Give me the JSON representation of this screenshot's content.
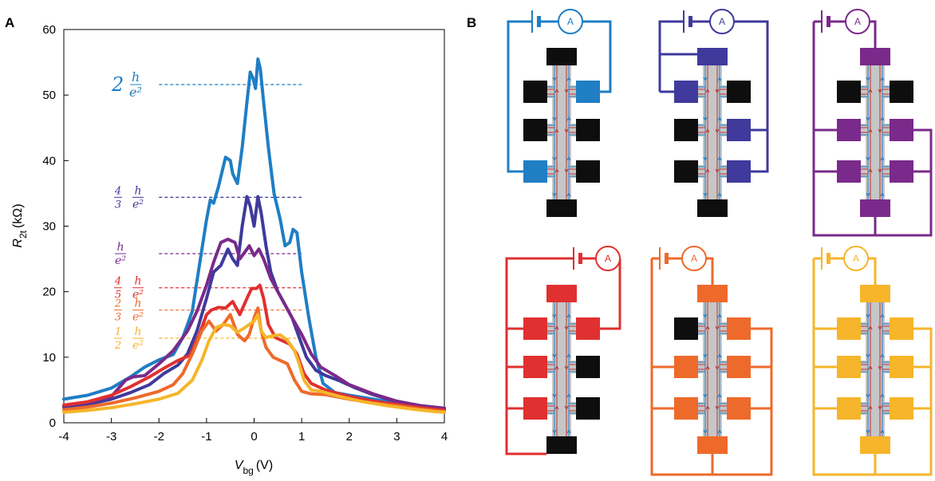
{
  "panel_a": {
    "letter": "A",
    "chart_data": {
      "type": "line",
      "xlabel": "V",
      "xlabel_sub": "bg",
      "xlabel_unit": "(V)",
      "ylabel": "R",
      "ylabel_sub": "2t",
      "ylabel_unit": "(kΩ)",
      "xlim": [
        -4,
        4
      ],
      "ylim": [
        0,
        60
      ],
      "xticks": [
        -4,
        -3,
        -2,
        -1,
        0,
        1,
        2,
        3,
        4
      ],
      "yticks": [
        0,
        10,
        20,
        30,
        40,
        50,
        60
      ],
      "grid": false,
      "reference_lines": [
        {
          "label_coef": "2",
          "label_frac": "h/e²",
          "y": 51.6,
          "color": "#1f7ec4"
        },
        {
          "label_coef": "4/3",
          "label_frac": "h/e²",
          "y": 34.4,
          "color": "#3f3a9c"
        },
        {
          "label_coef": "",
          "label_frac": "h/e²",
          "y": 25.8,
          "color": "#7a2a8a"
        },
        {
          "label_coef": "4/5",
          "label_frac": "h/e²",
          "y": 20.6,
          "color": "#e03030"
        },
        {
          "label_coef": "2/3",
          "label_frac": "h/e²",
          "y": 17.2,
          "color": "#ee6a2a"
        },
        {
          "label_coef": "1/2",
          "label_frac": "h/e²",
          "y": 12.9,
          "color": "#f6b52a"
        }
      ],
      "series": [
        {
          "color": "#1f7ec4",
          "points": [
            [
              -4,
              3.6
            ],
            [
              -3.5,
              4.2
            ],
            [
              -3,
              5.3
            ],
            [
              -2.6,
              7.0
            ],
            [
              -2.3,
              8.5
            ],
            [
              -2.0,
              9.6
            ],
            [
              -1.7,
              10.4
            ],
            [
              -1.5,
              13
            ],
            [
              -1.3,
              17
            ],
            [
              -1.15,
              24
            ],
            [
              -1.0,
              31
            ],
            [
              -0.92,
              34
            ],
            [
              -0.85,
              33.5
            ],
            [
              -0.75,
              36
            ],
            [
              -0.6,
              40.5
            ],
            [
              -0.5,
              40
            ],
            [
              -0.45,
              38
            ],
            [
              -0.35,
              36.5
            ],
            [
              -0.25,
              42
            ],
            [
              -0.15,
              49
            ],
            [
              -0.08,
              53.5
            ],
            [
              -0.02,
              52.5
            ],
            [
              0.03,
              51
            ],
            [
              0.08,
              55.5
            ],
            [
              0.13,
              54
            ],
            [
              0.2,
              49
            ],
            [
              0.3,
              42
            ],
            [
              0.42,
              35
            ],
            [
              0.55,
              31
            ],
            [
              0.65,
              27
            ],
            [
              0.75,
              27.5
            ],
            [
              0.82,
              29.5
            ],
            [
              0.9,
              29
            ],
            [
              1.0,
              23
            ],
            [
              1.15,
              16
            ],
            [
              1.3,
              10
            ],
            [
              1.45,
              6
            ],
            [
              1.7,
              4.6
            ],
            [
              2.0,
              4.2
            ],
            [
              2.5,
              3.6
            ],
            [
              3,
              3.0
            ],
            [
              3.5,
              2.6
            ],
            [
              4,
              2.2
            ]
          ]
        },
        {
          "color": "#3f3a9c",
          "points": [
            [
              -4,
              2.4
            ],
            [
              -3.5,
              2.8
            ],
            [
              -3,
              3.6
            ],
            [
              -2.6,
              4.6
            ],
            [
              -2.2,
              5.8
            ],
            [
              -1.9,
              7.5
            ],
            [
              -1.6,
              8.8
            ],
            [
              -1.4,
              10.5
            ],
            [
              -1.2,
              14
            ],
            [
              -1.0,
              19
            ],
            [
              -0.85,
              23
            ],
            [
              -0.7,
              24
            ],
            [
              -0.55,
              26.5
            ],
            [
              -0.45,
              25
            ],
            [
              -0.35,
              24
            ],
            [
              -0.25,
              30
            ],
            [
              -0.15,
              34.5
            ],
            [
              -0.08,
              33
            ],
            [
              0.0,
              30
            ],
            [
              0.08,
              34.5
            ],
            [
              0.15,
              32
            ],
            [
              0.25,
              27
            ],
            [
              0.35,
              23
            ],
            [
              0.5,
              20
            ],
            [
              0.65,
              18
            ],
            [
              0.8,
              16
            ],
            [
              0.95,
              13
            ],
            [
              1.1,
              10
            ],
            [
              1.3,
              8
            ],
            [
              1.5,
              7.2
            ],
            [
              1.8,
              6.4
            ],
            [
              2.1,
              5.4
            ],
            [
              2.5,
              4.3
            ],
            [
              3,
              3.2
            ],
            [
              3.5,
              2.6
            ],
            [
              4,
              2.2
            ]
          ]
        },
        {
          "color": "#7a2a8a",
          "points": [
            [
              -4,
              2.6
            ],
            [
              -3.5,
              3.1
            ],
            [
              -3,
              4.0
            ],
            [
              -2.7,
              6.5
            ],
            [
              -2.55,
              7.0
            ],
            [
              -2.3,
              7.2
            ],
            [
              -2.0,
              9.0
            ],
            [
              -1.7,
              11.0
            ],
            [
              -1.4,
              14
            ],
            [
              -1.2,
              17
            ],
            [
              -1.0,
              21
            ],
            [
              -0.85,
              24.5
            ],
            [
              -0.7,
              27.5
            ],
            [
              -0.55,
              28
            ],
            [
              -0.4,
              27.5
            ],
            [
              -0.3,
              25
            ],
            [
              -0.2,
              26
            ],
            [
              -0.1,
              27
            ],
            [
              0.0,
              25.5
            ],
            [
              0.1,
              26.5
            ],
            [
              0.2,
              25
            ],
            [
              0.35,
              22
            ],
            [
              0.5,
              20
            ],
            [
              0.65,
              18
            ],
            [
              0.8,
              16
            ],
            [
              1.0,
              13.5
            ],
            [
              1.2,
              10.5
            ],
            [
              1.4,
              8.5
            ],
            [
              1.7,
              7.2
            ],
            [
              2.0,
              5.8
            ],
            [
              2.5,
              4.4
            ],
            [
              3,
              3.3
            ],
            [
              3.5,
              2.6
            ],
            [
              4,
              2.2
            ]
          ]
        },
        {
          "color": "#e03030",
          "points": [
            [
              -4,
              2.7
            ],
            [
              -3.5,
              3.2
            ],
            [
              -3,
              4.2
            ],
            [
              -2.6,
              5.5
            ],
            [
              -2.2,
              7.0
            ],
            [
              -1.9,
              8.3
            ],
            [
              -1.6,
              9.5
            ],
            [
              -1.35,
              10.3
            ],
            [
              -1.15,
              13.5
            ],
            [
              -1.0,
              16.5
            ],
            [
              -0.9,
              17.2
            ],
            [
              -0.75,
              17.6
            ],
            [
              -0.6,
              17.5
            ],
            [
              -0.45,
              18.5
            ],
            [
              -0.3,
              16.5
            ],
            [
              -0.15,
              19
            ],
            [
              -0.05,
              20.5
            ],
            [
              0.05,
              20.5
            ],
            [
              0.12,
              21
            ],
            [
              0.2,
              19
            ],
            [
              0.3,
              15
            ],
            [
              0.45,
              13
            ],
            [
              0.6,
              12.5
            ],
            [
              0.75,
              12
            ],
            [
              0.9,
              10.5
            ],
            [
              1.05,
              7.5
            ],
            [
              1.2,
              6.0
            ],
            [
              1.5,
              5.0
            ],
            [
              2.0,
              4.0
            ],
            [
              2.5,
              3.3
            ],
            [
              3,
              2.8
            ],
            [
              3.5,
              2.3
            ],
            [
              4,
              1.9
            ]
          ]
        },
        {
          "color": "#ee6a2a",
          "points": [
            [
              -4,
              2.0
            ],
            [
              -3.5,
              2.4
            ],
            [
              -3,
              3.0
            ],
            [
              -2.5,
              3.8
            ],
            [
              -2.0,
              4.8
            ],
            [
              -1.7,
              5.8
            ],
            [
              -1.5,
              7.5
            ],
            [
              -1.3,
              10.5
            ],
            [
              -1.1,
              14
            ],
            [
              -0.95,
              15.5
            ],
            [
              -0.8,
              14
            ],
            [
              -0.65,
              15
            ],
            [
              -0.5,
              16.5
            ],
            [
              -0.35,
              13.5
            ],
            [
              -0.2,
              12.5
            ],
            [
              -0.1,
              13.5
            ],
            [
              0.0,
              16
            ],
            [
              0.08,
              17.5
            ],
            [
              0.15,
              14
            ],
            [
              0.25,
              11.5
            ],
            [
              0.4,
              10
            ],
            [
              0.55,
              9.5
            ],
            [
              0.7,
              9
            ],
            [
              0.85,
              6.5
            ],
            [
              1.0,
              4.8
            ],
            [
              1.2,
              4.4
            ],
            [
              1.5,
              4.3
            ],
            [
              2.0,
              3.6
            ],
            [
              2.5,
              3.0
            ],
            [
              3,
              2.6
            ],
            [
              3.5,
              2.1
            ],
            [
              4,
              1.7
            ]
          ]
        },
        {
          "color": "#f6b52a",
          "points": [
            [
              -4,
              1.6
            ],
            [
              -3.5,
              1.9
            ],
            [
              -3,
              2.3
            ],
            [
              -2.5,
              2.9
            ],
            [
              -2.0,
              3.6
            ],
            [
              -1.6,
              4.5
            ],
            [
              -1.3,
              6.5
            ],
            [
              -1.1,
              9.5
            ],
            [
              -0.95,
              12.5
            ],
            [
              -0.8,
              14.5
            ],
            [
              -0.65,
              15.0
            ],
            [
              -0.5,
              14.8
            ],
            [
              -0.35,
              13.8
            ],
            [
              -0.2,
              14.5
            ],
            [
              -0.1,
              15
            ],
            [
              0.0,
              15.5
            ],
            [
              0.08,
              16.5
            ],
            [
              0.15,
              14
            ],
            [
              0.25,
              13
            ],
            [
              0.4,
              13.3
            ],
            [
              0.55,
              13.4
            ],
            [
              0.7,
              12.6
            ],
            [
              0.85,
              11
            ],
            [
              0.95,
              9
            ],
            [
              1.05,
              6.5
            ],
            [
              1.2,
              5.0
            ],
            [
              1.4,
              4.8
            ],
            [
              1.8,
              4.0
            ],
            [
              2.3,
              3.2
            ],
            [
              2.8,
              2.6
            ],
            [
              3.3,
              2.1
            ],
            [
              3.8,
              1.7
            ],
            [
              4,
              1.6
            ]
          ]
        }
      ]
    }
  },
  "panel_b": {
    "letter": "B",
    "ammeter_label": "A",
    "circuits": [
      {
        "color": "#1f7ec4"
      },
      {
        "color": "#3f3a9c"
      },
      {
        "color": "#7a2a8a"
      },
      {
        "color": "#e03030"
      },
      {
        "color": "#ee6a2a"
      },
      {
        "color": "#f6b52a"
      }
    ]
  }
}
